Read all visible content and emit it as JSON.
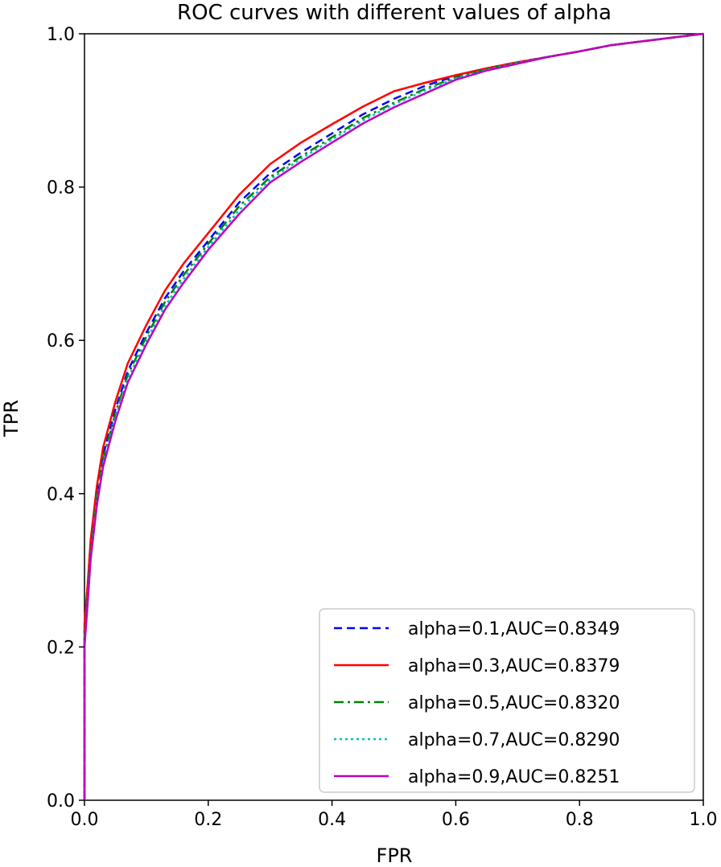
{
  "chart_data": {
    "type": "line",
    "title": "ROC curves with different values of alpha",
    "xlabel": "FPR",
    "ylabel": "TPR",
    "xlim": [
      0.0,
      1.0
    ],
    "ylim": [
      0.0,
      1.0
    ],
    "xticks": [
      "0.0",
      "0.2",
      "0.4",
      "0.6",
      "0.8",
      "1.0"
    ],
    "yticks": [
      "0.0",
      "0.2",
      "0.4",
      "0.6",
      "0.8",
      "1.0"
    ],
    "grid": false,
    "legend_position": "lower-right",
    "series": [
      {
        "name": "alpha=0.1,AUC=0.8349",
        "color": "#0000ff",
        "dash": "dashed",
        "x": [
          0.0,
          0.0,
          0.005,
          0.01,
          0.02,
          0.03,
          0.05,
          0.07,
          0.1,
          0.13,
          0.16,
          0.2,
          0.25,
          0.3,
          0.35,
          0.4,
          0.45,
          0.5,
          0.55,
          0.6,
          0.65,
          0.7,
          0.75,
          0.8,
          0.85,
          0.9,
          0.95,
          1.0
        ],
        "y": [
          0.0,
          0.22,
          0.27,
          0.33,
          0.4,
          0.45,
          0.51,
          0.56,
          0.61,
          0.655,
          0.69,
          0.73,
          0.78,
          0.818,
          0.845,
          0.87,
          0.895,
          0.915,
          0.932,
          0.945,
          0.955,
          0.963,
          0.97,
          0.977,
          0.985,
          0.99,
          0.995,
          1.0
        ]
      },
      {
        "name": "alpha=0.3,AUC=0.8379",
        "color": "#ff0000",
        "dash": "solid",
        "x": [
          0.0,
          0.0,
          0.005,
          0.01,
          0.02,
          0.03,
          0.05,
          0.07,
          0.1,
          0.13,
          0.16,
          0.2,
          0.25,
          0.3,
          0.35,
          0.4,
          0.45,
          0.5,
          0.55,
          0.6,
          0.65,
          0.7,
          0.75,
          0.8,
          0.85,
          0.9,
          0.95,
          1.0
        ],
        "y": [
          0.0,
          0.23,
          0.28,
          0.34,
          0.41,
          0.46,
          0.52,
          0.57,
          0.62,
          0.665,
          0.7,
          0.74,
          0.79,
          0.83,
          0.858,
          0.882,
          0.905,
          0.925,
          0.936,
          0.946,
          0.955,
          0.963,
          0.97,
          0.977,
          0.985,
          0.99,
          0.995,
          1.0
        ]
      },
      {
        "name": "alpha=0.5,AUC=0.8320",
        "color": "#008000",
        "dash": "dashdot",
        "x": [
          0.0,
          0.0,
          0.005,
          0.01,
          0.02,
          0.03,
          0.05,
          0.07,
          0.1,
          0.13,
          0.16,
          0.2,
          0.25,
          0.3,
          0.35,
          0.4,
          0.45,
          0.5,
          0.55,
          0.6,
          0.65,
          0.7,
          0.75,
          0.8,
          0.85,
          0.9,
          0.95,
          1.0
        ],
        "y": [
          0.0,
          0.21,
          0.265,
          0.325,
          0.395,
          0.445,
          0.505,
          0.555,
          0.605,
          0.65,
          0.685,
          0.726,
          0.775,
          0.813,
          0.84,
          0.865,
          0.89,
          0.91,
          0.928,
          0.943,
          0.954,
          0.962,
          0.97,
          0.977,
          0.985,
          0.99,
          0.995,
          1.0
        ]
      },
      {
        "name": "alpha=0.7,AUC=0.8290",
        "color": "#00bfbf",
        "dash": "dotted",
        "x": [
          0.0,
          0.0,
          0.005,
          0.01,
          0.02,
          0.03,
          0.05,
          0.07,
          0.1,
          0.13,
          0.16,
          0.2,
          0.25,
          0.3,
          0.35,
          0.4,
          0.45,
          0.5,
          0.55,
          0.6,
          0.65,
          0.7,
          0.75,
          0.8,
          0.85,
          0.9,
          0.95,
          1.0
        ],
        "y": [
          0.0,
          0.205,
          0.26,
          0.32,
          0.39,
          0.44,
          0.5,
          0.55,
          0.6,
          0.645,
          0.68,
          0.722,
          0.77,
          0.81,
          0.837,
          0.862,
          0.887,
          0.908,
          0.926,
          0.942,
          0.953,
          0.962,
          0.97,
          0.977,
          0.985,
          0.99,
          0.995,
          1.0
        ]
      },
      {
        "name": "alpha=0.9,AUC=0.8251",
        "color": "#bf00bf",
        "dash": "solid",
        "x": [
          0.0,
          0.0,
          0.005,
          0.01,
          0.02,
          0.03,
          0.05,
          0.07,
          0.1,
          0.13,
          0.16,
          0.2,
          0.25,
          0.3,
          0.35,
          0.4,
          0.45,
          0.5,
          0.55,
          0.6,
          0.65,
          0.7,
          0.75,
          0.8,
          0.85,
          0.9,
          0.95,
          1.0
        ],
        "y": [
          0.0,
          0.2,
          0.255,
          0.315,
          0.385,
          0.435,
          0.495,
          0.545,
          0.595,
          0.64,
          0.675,
          0.718,
          0.765,
          0.806,
          0.833,
          0.858,
          0.883,
          0.904,
          0.922,
          0.94,
          0.952,
          0.961,
          0.97,
          0.977,
          0.985,
          0.99,
          0.995,
          1.0
        ]
      }
    ]
  }
}
